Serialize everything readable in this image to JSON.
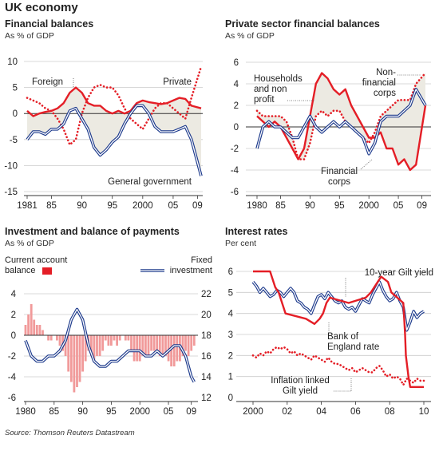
{
  "title": "UK economy",
  "source": "Source: Thomson Reuters Datastream",
  "colors": {
    "red": "#e41e26",
    "blue": "#1d3a8c",
    "shade": "#eceae2",
    "bar": "#f19a9a",
    "grid": "#cccccc"
  },
  "chart_data": [
    {
      "type": "line",
      "title": "Financial balances",
      "subtitle": "As % of GDP",
      "ylim": [
        -15,
        10
      ],
      "y_ticks": [
        "10",
        "5",
        "0",
        "-5",
        "-10",
        "-15"
      ],
      "x_tick_labels": [
        "1981",
        "85",
        "90",
        "95",
        "2000",
        "05",
        "09"
      ],
      "annotations": {
        "foreign": "Foreign",
        "private": "Private",
        "government": "General government"
      },
      "series": [
        {
          "name": "Foreign",
          "style": "solid-red",
          "x": [
            1981,
            1982,
            1983,
            1984,
            1985,
            1986,
            1987,
            1988,
            1989,
            1990,
            1991,
            1992,
            1993,
            1994,
            1995,
            1996,
            1997,
            1998,
            1999,
            2000,
            2001,
            2002,
            2003,
            2004,
            2005,
            2006,
            2007,
            2008,
            2009.6
          ],
          "y": [
            0.5,
            -0.5,
            0,
            0.3,
            0.5,
            1,
            2,
            4,
            5,
            4,
            2,
            1.5,
            1.5,
            0.5,
            0,
            0.5,
            0,
            0.5,
            2,
            2.5,
            2.2,
            2,
            1.8,
            2,
            2.5,
            3,
            2.8,
            1.5,
            1
          ]
        },
        {
          "name": "Private",
          "style": "dotted-red",
          "x": [
            1981,
            1982,
            1983,
            1984,
            1985,
            1986,
            1987,
            1988,
            1989,
            1990,
            1991,
            1992,
            1993,
            1994,
            1995,
            1996,
            1997,
            1998,
            1999,
            2000,
            2001,
            2002,
            2003,
            2004,
            2005,
            2006,
            2007,
            2008,
            2009.6
          ],
          "y": [
            3,
            2.5,
            2,
            1,
            0.5,
            -1,
            -3,
            -6,
            -5,
            0,
            3,
            5,
            5.5,
            5,
            5,
            3.5,
            1,
            -1,
            -2,
            -3,
            -1,
            1,
            2,
            2,
            1,
            0,
            -1,
            3,
            9
          ]
        },
        {
          "name": "General government",
          "style": "double-blue",
          "x": [
            1981,
            1982,
            1983,
            1984,
            1985,
            1986,
            1987,
            1988,
            1989,
            1990,
            1991,
            1992,
            1993,
            1994,
            1995,
            1996,
            1997,
            1998,
            1999,
            2000,
            2001,
            2002,
            2003,
            2004,
            2005,
            2006,
            2007,
            2008,
            2009.6
          ],
          "y": [
            -5,
            -3.5,
            -3.5,
            -4,
            -3,
            -3,
            -2,
            0.5,
            1,
            -1,
            -3,
            -6.5,
            -8,
            -7,
            -5.5,
            -4.5,
            -2,
            0,
            1.5,
            1.5,
            0,
            -2.5,
            -3.5,
            -3.5,
            -3.5,
            -3,
            -2.5,
            -5,
            -12
          ]
        }
      ]
    },
    {
      "type": "line",
      "title": "Private sector financial balances",
      "subtitle": "As % of GDP",
      "ylim": [
        -6,
        6
      ],
      "y_ticks": [
        "6",
        "4",
        "2",
        "0",
        "-2",
        "-4",
        "-6"
      ],
      "x_tick_labels": [
        "1980",
        "85",
        "90",
        "95",
        "2000",
        "05",
        "09"
      ],
      "annotations": {
        "households": [
          "Households",
          "and non",
          "profit"
        ],
        "nonfin": [
          "Non-",
          "financial",
          "corps"
        ],
        "financial": [
          "Financial",
          "corps"
        ]
      },
      "series": [
        {
          "name": "Households and non profit",
          "style": "solid-red",
          "x": [
            1981,
            1982,
            1983,
            1984,
            1985,
            1986,
            1987,
            1988,
            1989,
            1990,
            1991,
            1992,
            1993,
            1994,
            1995,
            1996,
            1997,
            1998,
            1999,
            2000,
            2001,
            2002,
            2003,
            2004,
            2005,
            2006,
            2007,
            2008,
            2009.6
          ],
          "y": [
            1,
            0.5,
            0,
            0.5,
            0,
            -1,
            -2,
            -3,
            -2,
            1,
            4,
            5,
            4.5,
            3.5,
            3,
            3.5,
            2,
            1,
            0,
            -1,
            -1,
            -0.5,
            -2,
            -2,
            -3.5,
            -3,
            -4,
            -3.5,
            2
          ]
        },
        {
          "name": "Non-financial corps",
          "style": "dotted-red",
          "x": [
            1981,
            1982,
            1983,
            1984,
            1985,
            1986,
            1987,
            1988,
            1989,
            1990,
            1991,
            1992,
            1993,
            1994,
            1995,
            1996,
            1997,
            1998,
            1999,
            2000,
            2001,
            2002,
            2003,
            2004,
            2005,
            2006,
            2007,
            2008,
            2009.6
          ],
          "y": [
            1.5,
            1,
            1,
            1,
            1,
            0.5,
            -1,
            -3,
            -3,
            -1.5,
            1,
            1.5,
            1,
            1.5,
            1.5,
            0.5,
            0,
            -0.5,
            -1,
            -1.5,
            -0.5,
            1,
            1.5,
            2,
            2.5,
            2.5,
            2.5,
            4,
            5
          ]
        },
        {
          "name": "Financial corps",
          "style": "double-blue",
          "x": [
            1981,
            1982,
            1983,
            1984,
            1985,
            1986,
            1987,
            1988,
            1989,
            1990,
            1991,
            1992,
            1993,
            1994,
            1995,
            1996,
            1997,
            1998,
            1999,
            2000,
            2001,
            2002,
            2003,
            2004,
            2005,
            2006,
            2007,
            2008,
            2009.6
          ],
          "y": [
            -2,
            0,
            0.5,
            0,
            0,
            -0.5,
            -1,
            -1,
            0,
            1,
            0,
            -0.5,
            0,
            0.5,
            0,
            0.5,
            0,
            -0.5,
            -1,
            -2.5,
            -1.5,
            0.5,
            1,
            1,
            1,
            1.5,
            2,
            3.5,
            2
          ]
        }
      ]
    },
    {
      "type": "bar+line",
      "title": "Investment and balance of payments",
      "subtitle": "As % of GDP",
      "left_axis": {
        "label": [
          "Current account",
          "balance"
        ],
        "ylim": [
          -6,
          4
        ],
        "ticks": [
          "4",
          "2",
          "0",
          "-2",
          "-4",
          "-6"
        ]
      },
      "right_axis": {
        "label": [
          "Fixed",
          "investment"
        ],
        "ylim": [
          12,
          22
        ],
        "ticks": [
          "22",
          "20",
          "18",
          "16",
          "14",
          "12"
        ]
      },
      "x_tick_labels": [
        "1980",
        "85",
        "90",
        "95",
        "2000",
        "05",
        "09"
      ],
      "series": [
        {
          "name": "Current account balance",
          "type": "bar",
          "axis": "left",
          "x": [
            1980,
            1980.5,
            1981,
            1981.5,
            1982,
            1982.5,
            1983,
            1983.5,
            1984,
            1984.5,
            1985,
            1985.5,
            1986,
            1986.5,
            1987,
            1987.5,
            1988,
            1988.5,
            1989,
            1989.5,
            1990,
            1990.5,
            1991,
            1991.5,
            1992,
            1992.5,
            1993,
            1993.5,
            1994,
            1994.5,
            1995,
            1995.5,
            1996,
            1996.5,
            1997,
            1997.5,
            1998,
            1998.5,
            1999,
            1999.5,
            2000,
            2000.5,
            2001,
            2001.5,
            2002,
            2002.5,
            2003,
            2003.5,
            2004,
            2004.5,
            2005,
            2005.5,
            2006,
            2006.5,
            2007,
            2007.5,
            2008,
            2008.5,
            2009,
            2009.5
          ],
          "y": [
            1,
            2,
            3,
            1.5,
            1,
            1,
            0.5,
            0,
            -0.5,
            -0.5,
            0,
            -0.5,
            -1,
            -1.5,
            -2,
            -3.5,
            -4.5,
            -5.5,
            -5,
            -4.5,
            -3.5,
            -2.5,
            -1.5,
            -2,
            -2.5,
            -2,
            -2,
            -1.5,
            -0.5,
            -1,
            -1,
            -0.5,
            -1,
            -0.5,
            0,
            -0.5,
            -0.5,
            -1.5,
            -2.5,
            -2.5,
            -2.5,
            -2,
            -2,
            -2,
            -1.5,
            -1.5,
            -1.5,
            -2,
            -2,
            -2,
            -2.5,
            -3,
            -3,
            -2.5,
            -2.5,
            -2,
            -1.5,
            -2,
            -1.5,
            -1
          ]
        },
        {
          "name": "Fixed investment",
          "type": "line",
          "style": "double-blue",
          "axis": "right",
          "x": [
            1980,
            1981,
            1982,
            1983,
            1984,
            1985,
            1986,
            1987,
            1988,
            1989,
            1990,
            1991,
            1992,
            1993,
            1994,
            1995,
            1996,
            1997,
            1998,
            1999,
            2000,
            2001,
            2002,
            2003,
            2004,
            2005,
            2006,
            2007,
            2008,
            2009,
            2009.5
          ],
          "y": [
            17.5,
            16,
            15.5,
            15.5,
            16,
            16,
            16.5,
            17.5,
            19.5,
            20.5,
            19.5,
            17,
            15.5,
            15,
            15,
            15.5,
            15.5,
            16,
            16.5,
            16.5,
            16.5,
            16,
            16,
            16.5,
            16,
            16.5,
            17,
            17,
            16,
            14,
            13.5
          ]
        }
      ]
    },
    {
      "type": "line",
      "title": "Interest rates",
      "subtitle": "Per cent",
      "ylim": [
        0,
        6
      ],
      "y_ticks": [
        "6",
        "5",
        "4",
        "3",
        "2",
        "1",
        "0"
      ],
      "x_tick_labels": [
        "2000",
        "02",
        "04",
        "06",
        "08",
        "10"
      ],
      "annotations": {
        "gilt": "10-year Gilt yield",
        "boe": [
          "Bank of",
          "England rate"
        ],
        "inflation": [
          "Inflation linked",
          "Gilt yield"
        ]
      },
      "series": [
        {
          "name": "Bank of England rate",
          "style": "step-red",
          "x": [
            2000.0,
            2001.0,
            2001.1,
            2001.3,
            2001.5,
            2001.7,
            2001.9,
            2003.1,
            2003.6,
            2003.9,
            2004.1,
            2004.3,
            2004.5,
            2005.6,
            2006.6,
            2006.9,
            2007.1,
            2007.5,
            2007.9,
            2008.1,
            2008.8,
            2008.9,
            2008.95,
            2009.1,
            2009.2,
            2010.0
          ],
          "y": [
            6.0,
            6.0,
            5.75,
            5.25,
            5.0,
            4.5,
            4.0,
            3.75,
            3.5,
            3.75,
            4.0,
            4.5,
            4.75,
            4.5,
            4.75,
            5.0,
            5.25,
            5.75,
            5.5,
            5.0,
            4.5,
            3.0,
            2.0,
            1.0,
            0.5,
            0.5
          ]
        },
        {
          "name": "10-year Gilt yield",
          "style": "double-blue",
          "x": [
            2000.0,
            2000.2,
            2000.4,
            2000.6,
            2000.8,
            2001.0,
            2001.2,
            2001.4,
            2001.6,
            2001.8,
            2002.0,
            2002.2,
            2002.4,
            2002.6,
            2002.8,
            2003.0,
            2003.2,
            2003.4,
            2003.6,
            2003.8,
            2004.0,
            2004.2,
            2004.4,
            2004.6,
            2004.8,
            2005.0,
            2005.2,
            2005.4,
            2005.6,
            2005.8,
            2006.0,
            2006.2,
            2006.4,
            2006.6,
            2006.8,
            2007.0,
            2007.2,
            2007.4,
            2007.6,
            2007.8,
            2008.0,
            2008.2,
            2008.4,
            2008.6,
            2008.8,
            2009.0,
            2009.2,
            2009.4,
            2009.6,
            2009.8,
            2010.0
          ],
          "y": [
            5.5,
            5.3,
            5.0,
            5.2,
            5.0,
            4.8,
            4.9,
            5.1,
            5.0,
            4.8,
            5.0,
            5.2,
            5.0,
            4.6,
            4.5,
            4.3,
            4.2,
            4.0,
            4.4,
            4.8,
            4.9,
            4.7,
            5.0,
            4.8,
            4.6,
            4.5,
            4.6,
            4.3,
            4.2,
            4.3,
            4.1,
            4.4,
            4.7,
            4.6,
            4.5,
            4.9,
            5.2,
            5.5,
            5.1,
            4.8,
            4.6,
            4.7,
            5.0,
            4.6,
            4.3,
            3.2,
            3.6,
            4.1,
            3.8,
            4.0,
            4.1
          ]
        },
        {
          "name": "Inflation linked Gilt yield",
          "style": "dotted-red",
          "x": [
            2000.0,
            2000.2,
            2000.4,
            2000.6,
            2000.8,
            2001.0,
            2001.2,
            2001.4,
            2001.6,
            2001.8,
            2002.0,
            2002.2,
            2002.4,
            2002.6,
            2002.8,
            2003.0,
            2003.2,
            2003.4,
            2003.6,
            2003.8,
            2004.0,
            2004.2,
            2004.4,
            2004.6,
            2004.8,
            2005.0,
            2005.2,
            2005.4,
            2005.6,
            2005.8,
            2006.0,
            2006.2,
            2006.4,
            2006.6,
            2006.8,
            2007.0,
            2007.2,
            2007.4,
            2007.6,
            2007.8,
            2008.0,
            2008.2,
            2008.4,
            2008.6,
            2008.8,
            2009.0,
            2009.2,
            2009.4,
            2009.6,
            2009.8,
            2010.0
          ],
          "y": [
            2.0,
            1.9,
            2.1,
            2.0,
            2.2,
            2.1,
            2.3,
            2.4,
            2.3,
            2.4,
            2.3,
            2.1,
            2.2,
            2.0,
            2.1,
            2.0,
            1.9,
            1.8,
            2.0,
            1.9,
            1.8,
            1.7,
            1.9,
            1.7,
            1.6,
            1.6,
            1.5,
            1.4,
            1.3,
            1.4,
            1.2,
            1.3,
            1.4,
            1.3,
            1.2,
            1.2,
            1.4,
            1.5,
            1.3,
            1.0,
            1.1,
            0.9,
            1.0,
            0.9,
            0.6,
            0.9,
            0.8,
            0.7,
            0.9,
            0.8,
            0.8
          ]
        }
      ]
    }
  ]
}
